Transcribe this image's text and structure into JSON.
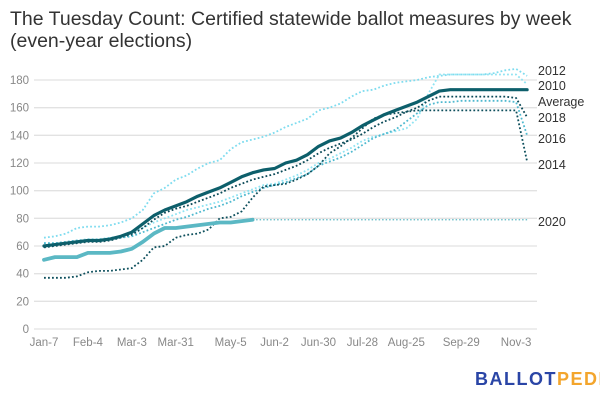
{
  "chart_data": {
    "type": "line",
    "title": "The Tuesday Count: Certified statewide ballot measures by week (even-year elections)",
    "xlabel": "",
    "ylabel": "",
    "ylim": [
      0,
      180
    ],
    "yticks": [
      0,
      20,
      40,
      60,
      80,
      100,
      120,
      140,
      160,
      180
    ],
    "grid": true,
    "legend": "end-of-line labels (right)",
    "weeks": [
      "Jan-7",
      "Jan-14",
      "Jan-21",
      "Jan-28",
      "Feb-4",
      "Feb-11",
      "Feb-18",
      "Feb-25",
      "Mar-3",
      "Mar-10",
      "Mar-17",
      "Mar-24",
      "Mar-31",
      "Apr-7",
      "Apr-14",
      "Apr-21",
      "Apr-28",
      "May-5",
      "May-12",
      "May-19",
      "May-26",
      "Jun-2",
      "Jun-9",
      "Jun-16",
      "Jun-23",
      "Jun-30",
      "Jul-7",
      "Jul-14",
      "Jul-21",
      "Jul-28",
      "Aug-4",
      "Aug-11",
      "Aug-18",
      "Aug-25",
      "Sep-1",
      "Sep-8",
      "Sep-15",
      "Sep-22",
      "Sep-29",
      "Oct-6",
      "Oct-13",
      "Oct-20",
      "Oct-27",
      "Nov-3",
      "Nov-10"
    ],
    "xtick_labels": [
      "Jan-7",
      "Feb-4",
      "Mar-3",
      "Mar-31",
      "May-5",
      "Jun-2",
      "Jun-30",
      "Jul-28",
      "Aug-25",
      "Sep-29",
      "Nov-3"
    ],
    "series": [
      {
        "name": "2012",
        "color": "#7fdcef",
        "style": "dotted",
        "values": [
          66,
          67,
          69,
          73,
          74,
          74,
          75,
          77,
          80,
          86,
          98,
          102,
          108,
          111,
          116,
          120,
          122,
          130,
          135,
          137,
          139,
          142,
          146,
          149,
          152,
          158,
          160,
          163,
          168,
          172,
          173,
          176,
          178,
          179,
          180,
          182,
          183,
          184,
          184,
          184,
          184,
          185,
          187,
          188,
          183
        ]
      },
      {
        "name": "2010",
        "color": "#8ee3f2",
        "style": "dotted",
        "values": [
          62,
          62,
          63,
          64,
          65,
          65,
          66,
          67,
          69,
          73,
          77,
          80,
          83,
          86,
          88,
          90,
          92,
          95,
          98,
          101,
          104,
          105,
          108,
          111,
          115,
          120,
          123,
          127,
          131,
          136,
          139,
          141,
          143,
          145,
          152,
          170,
          184,
          184,
          184,
          184,
          184,
          184,
          184,
          184,
          177
        ]
      },
      {
        "name": "2018",
        "color": "#0b4a58",
        "style": "dotted",
        "values": [
          59,
          60,
          61,
          62,
          63,
          63,
          64,
          66,
          68,
          73,
          79,
          84,
          87,
          89,
          92,
          95,
          98,
          102,
          105,
          108,
          110,
          112,
          115,
          118,
          122,
          127,
          131,
          134,
          137,
          141,
          146,
          150,
          153,
          157,
          160,
          165,
          168,
          168,
          168,
          168,
          168,
          168,
          168,
          167,
          153
        ]
      },
      {
        "name": "2016",
        "color": "#4fb9cf",
        "style": "dotted",
        "values": [
          62,
          62,
          63,
          64,
          64,
          64,
          65,
          66,
          67,
          70,
          73,
          76,
          79,
          81,
          84,
          87,
          89,
          92,
          96,
          99,
          102,
          104,
          106,
          109,
          112,
          118,
          121,
          124,
          128,
          133,
          138,
          141,
          144,
          150,
          156,
          162,
          164,
          164,
          165,
          165,
          165,
          165,
          165,
          164,
          140
        ]
      },
      {
        "name": "2014",
        "color": "#0d4f5c",
        "style": "dotted",
        "values": [
          37,
          37,
          37,
          38,
          41,
          42,
          42,
          43,
          44,
          50,
          59,
          60,
          66,
          68,
          69,
          72,
          80,
          81,
          85,
          95,
          103,
          104,
          105,
          108,
          112,
          118,
          127,
          132,
          138,
          145,
          152,
          155,
          156,
          157,
          158,
          158,
          158,
          158,
          158,
          158,
          158,
          158,
          158,
          158,
          121
        ]
      },
      {
        "name": "2020",
        "color": "#5bb8c4",
        "style": "solid",
        "values": [
          50,
          52,
          52,
          52,
          55,
          55,
          55,
          56,
          58,
          63,
          69,
          73,
          73,
          74,
          75,
          76,
          77,
          77,
          78,
          79
        ],
        "projection_value": 79
      },
      {
        "name": "Average",
        "color": "#0d5f6b",
        "style": "solid",
        "values": [
          60,
          61,
          62,
          63,
          64,
          64,
          65,
          67,
          70,
          76,
          82,
          86,
          89,
          92,
          96,
          99,
          102,
          106,
          110,
          113,
          115,
          116,
          120,
          122,
          126,
          132,
          136,
          138,
          142,
          147,
          151,
          155,
          158,
          161,
          164,
          168,
          172,
          173,
          173,
          173,
          173,
          173,
          173,
          173,
          173
        ]
      }
    ],
    "end_labels": [
      "2012",
      "2010",
      "Average",
      "2018",
      "2016",
      "2014",
      "2020"
    ]
  },
  "branding": {
    "logo_part1": "BALLOT",
    "logo_part2": "PEDIA"
  }
}
